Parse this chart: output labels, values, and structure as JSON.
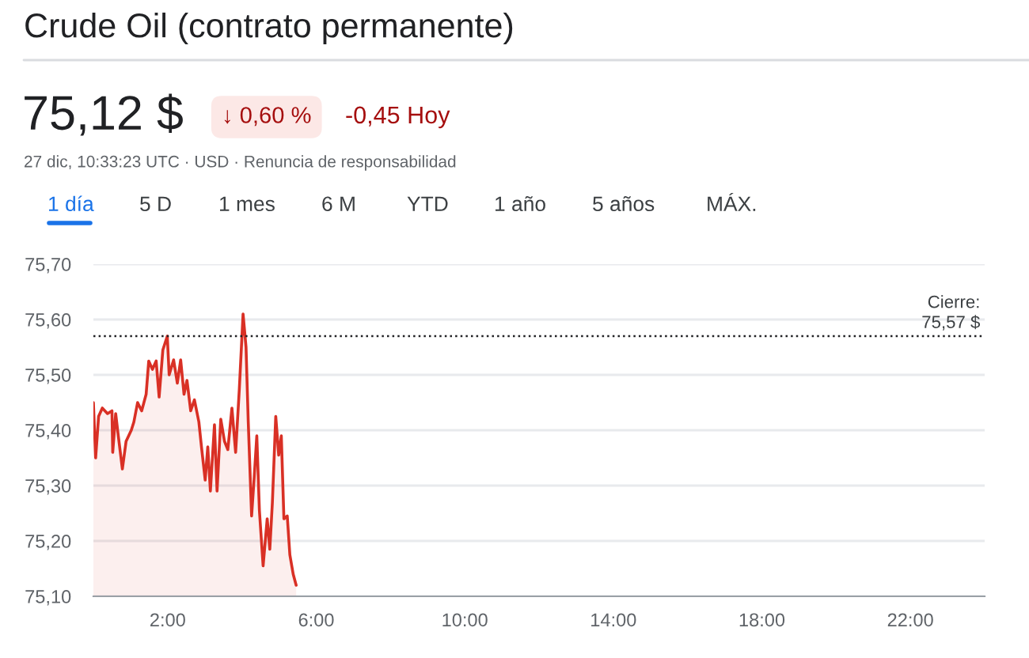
{
  "chart_data": {
    "type": "area",
    "title": "Crude Oil (contrato permanente)",
    "annotations": [
      "75,12 $",
      "↓ 0,60 %",
      "-0,45 Hoy",
      "27 dic, 10:33:23 UTC · USD · Renuncia de responsabilidad",
      "1 día",
      "5 D",
      "1 mes",
      "6 M",
      "YTD",
      "1 año",
      "5 años",
      "MÁX."
    ],
    "series": [
      {
        "color": "#d93025",
        "x": [
          0.0,
          0.06,
          0.14,
          0.24,
          0.38,
          0.5,
          0.52,
          0.6,
          0.67,
          0.78,
          0.88,
          1.02,
          1.09,
          1.19,
          1.3,
          1.42,
          1.49,
          1.59,
          1.69,
          1.77,
          1.87,
          1.99,
          2.04,
          2.16,
          2.26,
          2.35,
          2.44,
          2.52,
          2.62,
          2.72,
          2.84,
          2.91,
          3.01,
          3.08,
          3.15,
          3.26,
          3.33,
          3.43,
          3.53,
          3.62,
          3.73,
          3.83,
          3.93,
          4.03,
          4.11,
          4.17,
          4.26,
          4.33,
          4.4,
          4.47,
          4.57,
          4.68,
          4.75,
          4.82,
          4.91,
          4.99,
          5.06,
          5.13,
          5.22,
          5.29,
          5.38,
          5.46
        ],
        "values": [
          75.45,
          75.35,
          75.425,
          75.44,
          75.43,
          75.435,
          75.36,
          75.43,
          75.39,
          75.33,
          75.38,
          75.4,
          75.415,
          75.45,
          75.435,
          75.465,
          75.525,
          75.51,
          75.525,
          75.46,
          75.545,
          75.57,
          75.5,
          75.527,
          75.485,
          75.527,
          75.465,
          75.49,
          75.435,
          75.455,
          75.415,
          75.37,
          75.31,
          75.37,
          75.29,
          75.41,
          75.29,
          75.42,
          75.38,
          75.365,
          75.44,
          75.36,
          75.475,
          75.61,
          75.55,
          75.415,
          75.245,
          75.315,
          75.39,
          75.255,
          75.155,
          75.24,
          75.185,
          75.27,
          75.425,
          75.355,
          75.39,
          75.24,
          75.245,
          75.175,
          75.14,
          75.12
        ]
      }
    ],
    "xlim": [
      0,
      24
    ],
    "ylim": [
      75.1,
      75.7
    ],
    "xticks": [
      {
        "value": 2,
        "label": "2:00"
      },
      {
        "value": 6,
        "label": "6:00"
      },
      {
        "value": 10,
        "label": "10:00"
      },
      {
        "value": 14,
        "label": "14:00"
      },
      {
        "value": 18,
        "label": "18:00"
      },
      {
        "value": 22,
        "label": "22:00"
      }
    ],
    "yticks": [
      {
        "value": 75.1,
        "label": "75,10"
      },
      {
        "value": 75.2,
        "label": "75,20"
      },
      {
        "value": 75.3,
        "label": "75,30"
      },
      {
        "value": 75.4,
        "label": "75,40"
      },
      {
        "value": 75.5,
        "label": "75,50"
      },
      {
        "value": 75.6,
        "label": "75,60"
      },
      {
        "value": 75.7,
        "label": "75,70"
      }
    ],
    "ref_lines": [
      {
        "axis": "y",
        "value": 75.57,
        "label": "Cierre:\n75,57 $",
        "color": "#202124",
        "line_style": "dotted"
      }
    ],
    "grid": "y",
    "marker": "none",
    "line_style": "solid",
    "legend": false
  }
}
